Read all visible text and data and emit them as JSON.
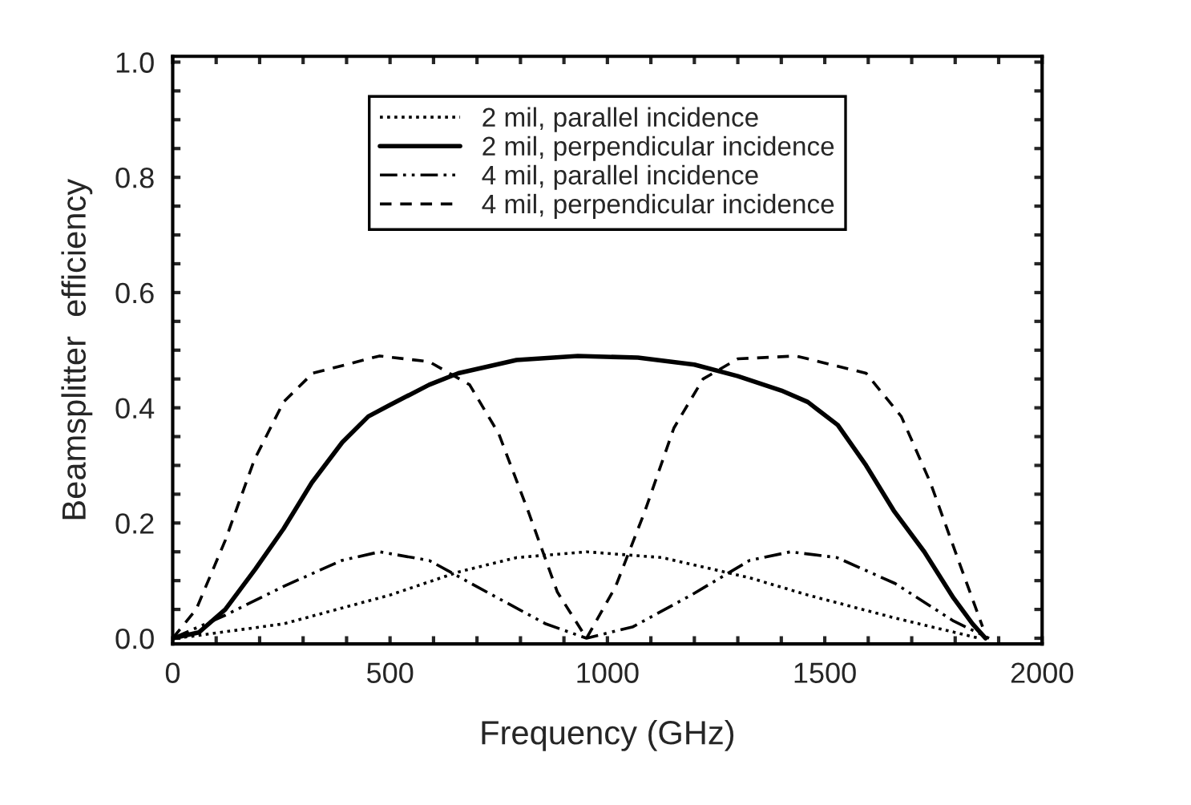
{
  "chart_data": {
    "type": "line",
    "xlabel": "Frequency (GHz)",
    "ylabel": "Beamsplitter  efficiency",
    "xlim": [
      0,
      2000
    ],
    "ylim": [
      -0.01,
      1.01
    ],
    "xticks": [
      0,
      {
        "value": 100,
        "label": null
      },
      {
        "value": 200,
        "label": null
      },
      {
        "value": 300,
        "label": null
      },
      {
        "value": 400,
        "label": null
      },
      500,
      {
        "value": 600,
        "label": null
      },
      {
        "value": 700,
        "label": null
      },
      {
        "value": 800,
        "label": null
      },
      {
        "value": 900,
        "label": null
      },
      1000,
      {
        "value": 1100,
        "label": null
      },
      {
        "value": 1200,
        "label": null
      },
      {
        "value": 1300,
        "label": null
      },
      {
        "value": 1400,
        "label": null
      },
      1500,
      {
        "value": 1600,
        "label": null
      },
      {
        "value": 1700,
        "label": null
      },
      {
        "value": 1800,
        "label": null
      },
      {
        "value": 1900,
        "label": null
      },
      2000
    ],
    "yticks": [
      {
        "value": 0,
        "label": "0.0"
      },
      {
        "value": 0.05,
        "label": null
      },
      {
        "value": 0.1,
        "label": null
      },
      {
        "value": 0.15,
        "label": null
      },
      {
        "value": 0.2,
        "label": "0.2"
      },
      {
        "value": 0.25,
        "label": null
      },
      {
        "value": 0.3,
        "label": null
      },
      {
        "value": 0.35,
        "label": null
      },
      {
        "value": 0.4,
        "label": "0.4"
      },
      {
        "value": 0.45,
        "label": null
      },
      {
        "value": 0.5,
        "label": null
      },
      {
        "value": 0.55,
        "label": null
      },
      {
        "value": 0.6,
        "label": "0.6"
      },
      {
        "value": 0.65,
        "label": null
      },
      {
        "value": 0.7,
        "label": null
      },
      {
        "value": 0.75,
        "label": null
      },
      {
        "value": 0.8,
        "label": "0.8"
      },
      {
        "value": 0.85,
        "label": null
      },
      {
        "value": 0.9,
        "label": null
      },
      {
        "value": 0.95,
        "label": null
      },
      {
        "value": 1.0,
        "label": "1.0"
      }
    ],
    "legend": "top",
    "grid": false,
    "marker": "none",
    "series": [
      {
        "name": "2 mil, parallel incidence",
        "color": "#000000",
        "line_style": "dotted",
        "x": [
          10,
          255,
          500,
          657,
          791,
          952,
          1126,
          1327,
          1461,
          1662,
          1855
        ],
        "values": [
          0,
          0.025,
          0.075,
          0.115,
          0.14,
          0.15,
          0.14,
          0.105,
          0.075,
          0.035,
          0
        ]
      },
      {
        "name": "2 mil, perpendicular incidence",
        "color": "#000000",
        "line_style": "solid",
        "x": [
          0,
          60,
          121,
          190,
          255,
          320,
          390,
          450,
          500,
          590,
          657,
          791,
          932,
          1070,
          1200,
          1300,
          1400,
          1461,
          1530,
          1595,
          1660,
          1729,
          1796,
          1840,
          1870
        ],
        "values": [
          0,
          0.01,
          0.05,
          0.12,
          0.19,
          0.27,
          0.34,
          0.385,
          0.405,
          0.44,
          0.46,
          0.483,
          0.49,
          0.487,
          0.475,
          0.455,
          0.43,
          0.41,
          0.37,
          0.3,
          0.22,
          0.15,
          0.07,
          0.025,
          0
        ]
      },
      {
        "name": "4 mil, parallel incidence",
        "color": "#000000",
        "line_style": "dashdot",
        "x": [
          0,
          121,
          255,
          389,
          476,
          590,
          723,
          858,
          952,
          1059,
          1193,
          1327,
          1421,
          1528,
          1662,
          1796,
          1878
        ],
        "values": [
          0,
          0.04,
          0.09,
          0.135,
          0.15,
          0.135,
          0.08,
          0.025,
          0,
          0.02,
          0.075,
          0.135,
          0.15,
          0.14,
          0.095,
          0.03,
          0
        ]
      },
      {
        "name": "4 mil, perpendicular incidence",
        "color": "#000000",
        "line_style": "dashed",
        "x": [
          0,
          54,
          121,
          188,
          255,
          322,
          476,
          590,
          683,
          750,
          818,
          885,
          952,
          1019,
          1086,
          1153,
          1220,
          1300,
          1434,
          1595,
          1676,
          1743,
          1810,
          1863
        ],
        "values": [
          0,
          0.05,
          0.17,
          0.31,
          0.41,
          0.46,
          0.49,
          0.48,
          0.44,
          0.355,
          0.22,
          0.08,
          0,
          0.09,
          0.22,
          0.365,
          0.45,
          0.485,
          0.49,
          0.46,
          0.385,
          0.27,
          0.13,
          0.02
        ]
      }
    ]
  }
}
